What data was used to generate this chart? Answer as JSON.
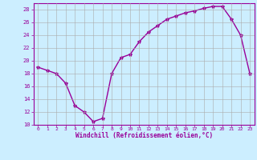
{
  "x": [
    0,
    1,
    2,
    3,
    4,
    5,
    6,
    7,
    8,
    9,
    10,
    11,
    12,
    13,
    14,
    15,
    16,
    17,
    18,
    19,
    20,
    21,
    22,
    23
  ],
  "y": [
    19,
    18.5,
    18,
    16.5,
    13,
    12,
    10.5,
    11,
    18,
    20.5,
    21,
    23,
    24.5,
    25.5,
    26.5,
    27,
    27.5,
    27.8,
    28.2,
    28.5,
    28.5,
    26.5,
    24,
    18
  ],
  "line_color": "#990099",
  "marker": "*",
  "marker_size": 3,
  "bg_color": "#cceeff",
  "grid_color": "#aaaaaa",
  "xlabel": "Windchill (Refroidissement éolien,°C)",
  "xlabel_color": "#990099",
  "tick_color": "#990099",
  "ylim": [
    10,
    29
  ],
  "xlim": [
    -0.5,
    23.5
  ],
  "yticks": [
    10,
    12,
    14,
    16,
    18,
    20,
    22,
    24,
    26,
    28
  ],
  "xticks": [
    0,
    1,
    2,
    3,
    4,
    5,
    6,
    7,
    8,
    9,
    10,
    11,
    12,
    13,
    14,
    15,
    16,
    17,
    18,
    19,
    20,
    21,
    22,
    23
  ]
}
